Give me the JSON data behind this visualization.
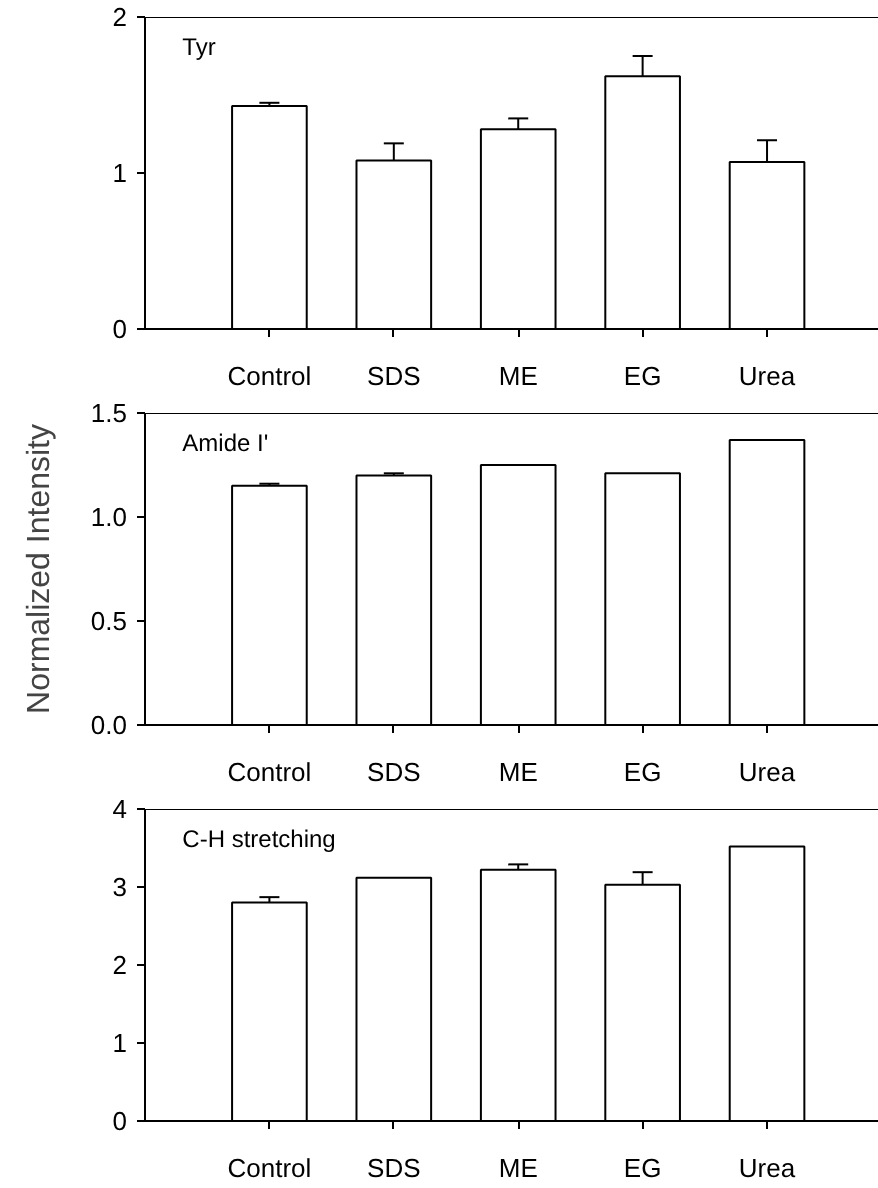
{
  "chart_data": [
    {
      "type": "bar",
      "title": "Tyr",
      "categories": [
        "Control",
        "SDS",
        "ME",
        "EG",
        "Urea"
      ],
      "values": [
        1.43,
        1.08,
        1.28,
        1.62,
        1.07
      ],
      "errors": [
        0.02,
        0.11,
        0.07,
        0.13,
        0.14
      ],
      "color": "#ffffff",
      "ylim": [
        0,
        2
      ],
      "yticks": [
        0,
        1,
        2
      ],
      "grid": false
    },
    {
      "type": "bar",
      "title": "Amide I'",
      "ylabel": "Normalized Intensity",
      "categories": [
        "Control",
        "SDS",
        "ME",
        "EG",
        "Urea"
      ],
      "values": [
        1.15,
        1.2,
        1.25,
        1.21,
        1.37
      ],
      "errors": [
        0.01,
        0.01,
        null,
        null,
        null
      ],
      "color": "#ffffff",
      "ylim": [
        0,
        1.5
      ],
      "yticks": [
        {
          "value": 0,
          "label": "0.0"
        },
        {
          "value": 0.5,
          "label": "0.5"
        },
        {
          "value": 1,
          "label": "1.0"
        },
        {
          "value": 1.5,
          "label": "1.5"
        }
      ],
      "grid": false
    },
    {
      "type": "bar",
      "title": "C-H stretching",
      "categories": [
        "Control",
        "SDS",
        "ME",
        "EG",
        "Urea"
      ],
      "values": [
        2.8,
        3.12,
        3.22,
        3.03,
        3.52
      ],
      "errors": [
        0.07,
        null,
        0.07,
        0.16,
        null
      ],
      "color": "#ffffff",
      "ylim": [
        0,
        4
      ],
      "yticks": [
        0,
        1,
        2,
        3,
        4
      ],
      "grid": false
    }
  ]
}
